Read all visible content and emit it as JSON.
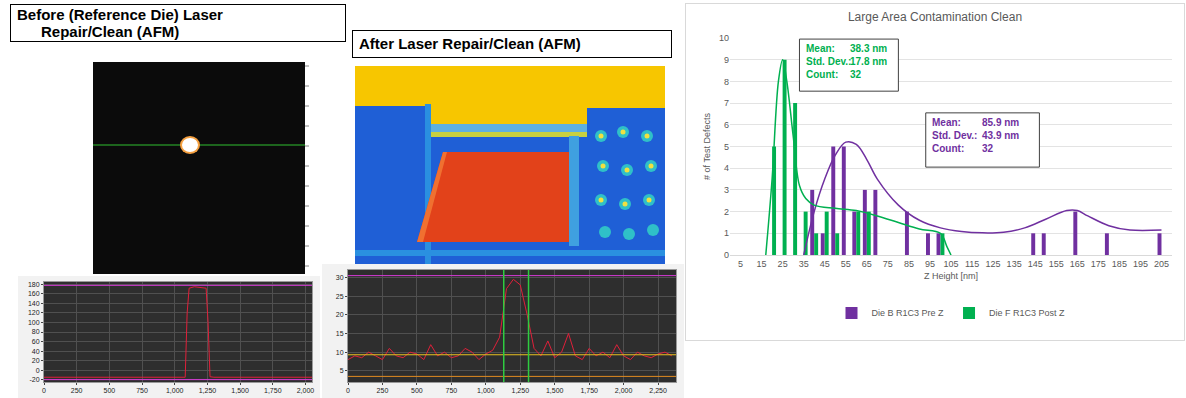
{
  "panel_titles": [
    [
      "Before (Reference Die) Laser",
      "Repair/Clean (AFM)"
    ],
    [
      "After Laser Repair/Clean (AFM)"
    ]
  ],
  "chart_data": [
    {
      "type": "line",
      "x": [
        0,
        100,
        200,
        300,
        400,
        500,
        600,
        700,
        800,
        900,
        1000,
        1080,
        1095,
        1110,
        1150,
        1200,
        1240,
        1255,
        1270,
        1300,
        1400,
        1500,
        1600,
        1700,
        1800,
        1900,
        2000,
        2050
      ],
      "series": [
        {
          "color": "#e0203a",
          "values": [
            -15,
            -15,
            -14,
            -15,
            -15,
            -14,
            -15,
            -15,
            -15,
            -14,
            -15,
            -15,
            120,
            172,
            175,
            174,
            172,
            100,
            -14,
            -15,
            -15,
            -15,
            -14,
            -15,
            -15,
            -15,
            -15,
            -15
          ]
        }
      ],
      "hlines": [
        {
          "value": 178,
          "color": "#d63ad6"
        },
        {
          "value": -20,
          "color": "#d63ad6"
        }
      ],
      "xlim": [
        0,
        2050
      ],
      "xticks": [
        0,
        250,
        500,
        750,
        {
          "value": 1000,
          "label": "1,000"
        },
        {
          "value": 1250,
          "label": "1,250"
        },
        {
          "value": 1500,
          "label": "1,500"
        },
        {
          "value": 1750,
          "label": "1,750"
        },
        {
          "value": 2000,
          "label": "2,000"
        }
      ],
      "ylim": [
        -25,
        185
      ],
      "yticks": [
        -20,
        0,
        20,
        40,
        60,
        80,
        100,
        120,
        140,
        160,
        180
      ],
      "grid": true
    },
    {
      "type": "line",
      "x": [
        0,
        50,
        100,
        150,
        200,
        250,
        300,
        350,
        400,
        450,
        500,
        550,
        600,
        650,
        700,
        750,
        800,
        850,
        900,
        950,
        1000,
        1050,
        1100,
        1150,
        1200,
        1250,
        1300,
        1350,
        1400,
        1450,
        1500,
        1550,
        1600,
        1650,
        1700,
        1750,
        1800,
        1850,
        1900,
        1950,
        2000,
        2050,
        2100,
        2150,
        2200,
        2250,
        2300,
        2350
      ],
      "series": [
        {
          "color": "#e0203a",
          "values": [
            8,
            9,
            8.5,
            10,
            9,
            8,
            11,
            9,
            8.5,
            10,
            9.5,
            8,
            12,
            9,
            10,
            8.5,
            9,
            11,
            10,
            8,
            9.5,
            10.5,
            14,
            27,
            29.5,
            28,
            20,
            11,
            9,
            13,
            8.5,
            10,
            15,
            9,
            8,
            11,
            9,
            10,
            8.5,
            12,
            9,
            8,
            10,
            9,
            8.5,
            9.5,
            10,
            9
          ]
        }
      ],
      "hlines": [
        {
          "value": 30.5,
          "color": "#d63ad6"
        },
        {
          "value": 9.3,
          "color": "#e8c020"
        },
        {
          "value": 3.5,
          "color": "#e08a20"
        }
      ],
      "vlines": [
        {
          "value": 1130,
          "color": "#2ecc40"
        },
        {
          "value": 1310,
          "color": "#2ecc40"
        }
      ],
      "xlim": [
        0,
        2380
      ],
      "xticks": [
        0,
        250,
        500,
        750,
        {
          "value": 1000,
          "label": "1,000"
        },
        {
          "value": 1250,
          "label": "1,250"
        },
        {
          "value": 1500,
          "label": "1,500"
        },
        {
          "value": 1750,
          "label": "1,750"
        },
        {
          "value": 2000,
          "label": "2,000"
        },
        {
          "value": 2250,
          "label": "2,250"
        }
      ],
      "ylim": [
        2,
        32
      ],
      "yticks": [
        5,
        10,
        15,
        20,
        25,
        30
      ],
      "grid": true
    },
    {
      "type": "bar",
      "title": "Large Area Contamination Clean",
      "x_label": "Z Height [nm]",
      "y_label": "# of Test Defects",
      "x": [
        5,
        10,
        15,
        20,
        25,
        30,
        35,
        40,
        45,
        50,
        55,
        60,
        65,
        70,
        75,
        80,
        85,
        90,
        95,
        100,
        105,
        110,
        115,
        120,
        125,
        130,
        135,
        140,
        145,
        150,
        155,
        160,
        165,
        170,
        175,
        180,
        185,
        190,
        195,
        200,
        205
      ],
      "series": [
        {
          "name": "Die B R1C3 Pre Z",
          "type": "bar",
          "color": "#7030a0",
          "values": [
            0,
            0,
            0,
            0,
            0,
            0,
            0,
            3,
            1,
            5,
            5,
            2,
            3,
            3,
            0,
            0,
            2,
            0,
            1,
            1,
            0,
            0,
            0,
            0,
            0,
            0,
            0,
            0,
            1,
            1,
            0,
            0,
            2,
            0,
            0,
            1,
            0,
            0,
            0,
            0,
            1
          ]
        },
        {
          "name": "Die F R1C3 Post Z",
          "type": "bar",
          "color": "#00b050",
          "values": [
            0,
            0,
            0,
            5,
            9,
            7,
            2,
            1,
            2,
            1,
            0,
            2,
            2,
            0,
            0,
            0,
            0,
            0,
            0,
            1,
            0,
            0,
            0,
            0,
            0,
            0,
            0,
            0,
            0,
            0,
            0,
            0,
            0,
            0,
            0,
            0,
            0,
            0,
            0,
            0,
            0
          ]
        },
        {
          "type": "line",
          "color": "#7030a0",
          "x": [
            35,
            40,
            45,
            50,
            55,
            60,
            65,
            70,
            80,
            90,
            100,
            110,
            120,
            130,
            140,
            150,
            160,
            165,
            170,
            180,
            190,
            205
          ],
          "values": [
            0,
            2,
            3.5,
            4.6,
            5.2,
            5.1,
            4.4,
            3.5,
            2.3,
            1.6,
            1.25,
            1.08,
            1.02,
            1.05,
            1.25,
            1.65,
            2.05,
            2.05,
            1.8,
            1.35,
            1.15,
            1.15
          ]
        },
        {
          "type": "line",
          "color": "#00b050",
          "x": [
            17,
            20,
            23,
            25,
            27,
            30,
            33,
            36,
            40,
            50,
            60,
            70,
            80,
            90,
            100,
            103,
            105
          ],
          "values": [
            0,
            3.5,
            8,
            9,
            8,
            5.5,
            3.2,
            2.6,
            2.3,
            2.15,
            2.05,
            1.8,
            1.5,
            1.2,
            1,
            0.4,
            0
          ]
        }
      ],
      "annotations": [
        {
          "color": "#00b050",
          "rows": [
            [
              "Mean:",
              "38.3 nm"
            ],
            [
              "Std. Dev.:",
              "17.8 nm"
            ],
            [
              "Count:",
              "32"
            ]
          ]
        },
        {
          "color": "#7030a0",
          "rows": [
            [
              "Mean:",
              "85.9 nm"
            ],
            [
              "Std. Dev.:",
              "43.9 nm"
            ],
            [
              "Count:",
              "32"
            ]
          ]
        }
      ],
      "legend": "bottom",
      "xlim": [
        0,
        210
      ],
      "xticks": [
        5,
        15,
        25,
        35,
        45,
        55,
        65,
        75,
        85,
        95,
        105,
        115,
        125,
        135,
        145,
        155,
        165,
        175,
        185,
        195,
        205
      ],
      "ylim": [
        0,
        10
      ],
      "yticks": [
        0,
        1,
        2,
        3,
        4,
        5,
        6,
        7,
        8,
        9,
        10
      ],
      "grid": true
    }
  ]
}
